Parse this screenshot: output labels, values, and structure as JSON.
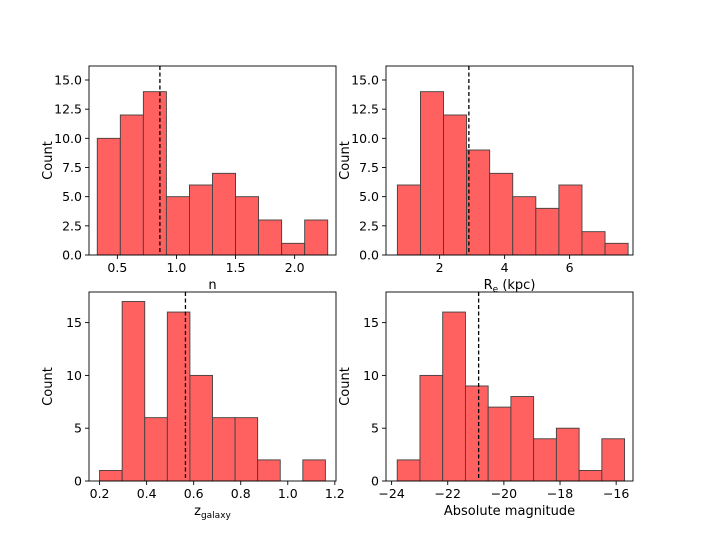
{
  "chart_data": [
    {
      "type": "bar",
      "panel": "top-left",
      "title": "",
      "xlabel": "n",
      "ylabel": "Count",
      "xlim": [
        0.26,
        2.35
      ],
      "ylim": [
        0,
        16.2
      ],
      "xticks": [
        0.5,
        1.0,
        1.5,
        2.0
      ],
      "xtick_labels": [
        "0.5",
        "1.0",
        "1.5",
        "2.0"
      ],
      "yticks": [
        0,
        2.5,
        5,
        7.5,
        10,
        12.5,
        15
      ],
      "ytick_labels": [
        "0.0",
        "2.5",
        "5.0",
        "7.5",
        "10.0",
        "12.5",
        "15.0"
      ],
      "bin_edges": [
        0.33,
        0.525,
        0.72,
        0.915,
        1.11,
        1.305,
        1.5,
        1.695,
        1.89,
        2.085,
        2.28
      ],
      "values": [
        10,
        12,
        14,
        5,
        6,
        7,
        5,
        3,
        1,
        3
      ],
      "median_line": 0.86,
      "bar_color": "#ff6161",
      "edge_color": "#404040"
    },
    {
      "type": "bar",
      "panel": "top-right",
      "title": "",
      "xlabel_main": "R",
      "xlabel_sub": "e",
      "xlabel_suffix": " (kpc)",
      "ylabel": "Count",
      "xlim": [
        0.35,
        7.95
      ],
      "ylim": [
        0,
        16.2
      ],
      "xticks": [
        2,
        4,
        6
      ],
      "xtick_labels": [
        "2",
        "4",
        "6"
      ],
      "yticks": [
        0,
        2.5,
        5,
        7.5,
        10,
        12.5,
        15
      ],
      "ytick_labels": [
        "0.0",
        "2.5",
        "5.0",
        "7.5",
        "10.0",
        "12.5",
        "15.0"
      ],
      "bin_edges": [
        0.7,
        1.41,
        2.12,
        2.83,
        3.54,
        4.25,
        4.96,
        5.67,
        6.38,
        7.09,
        7.8
      ],
      "values": [
        6,
        14,
        12,
        9,
        7,
        5,
        4,
        6,
        2,
        1
      ],
      "median_line": 2.9,
      "bar_color": "#ff6161",
      "edge_color": "#404040"
    },
    {
      "type": "bar",
      "panel": "bottom-left",
      "title": "",
      "xlabel_main": "z",
      "xlabel_sub": "galaxy",
      "xlabel_suffix": "",
      "ylabel": "Count",
      "xlim": [
        0.155,
        1.205
      ],
      "ylim": [
        0,
        17.9
      ],
      "xticks": [
        0.2,
        0.4,
        0.6,
        0.8,
        1.0,
        1.2
      ],
      "xtick_labels": [
        "0.2",
        "0.4",
        "0.6",
        "0.8",
        "1.0",
        "1.2"
      ],
      "yticks": [
        0,
        5,
        10,
        15
      ],
      "ytick_labels": [
        "0",
        "5",
        "10",
        "15"
      ],
      "bin_edges": [
        0.2,
        0.296,
        0.392,
        0.488,
        0.584,
        0.68,
        0.776,
        0.872,
        0.968,
        1.064,
        1.16
      ],
      "values": [
        1,
        17,
        6,
        16,
        10,
        6,
        6,
        2,
        0,
        2
      ],
      "median_line": 0.565,
      "bar_color": "#ff6161",
      "edge_color": "#404040"
    },
    {
      "type": "bar",
      "panel": "bottom-right",
      "title": "",
      "xlabel": "Absolute magnitude",
      "ylabel": "Count",
      "xlim": [
        -24.2,
        -15.4
      ],
      "ylim": [
        0,
        17.9
      ],
      "xticks": [
        -24,
        -22,
        -20,
        -18,
        -16
      ],
      "xtick_labels": [
        "−24",
        "−22",
        "−20",
        "−18",
        "−16"
      ],
      "yticks": [
        0,
        5,
        10,
        15
      ],
      "ytick_labels": [
        "0",
        "5",
        "10",
        "15"
      ],
      "bin_edges": [
        -23.8,
        -22.99,
        -22.18,
        -21.37,
        -20.56,
        -19.75,
        -18.94,
        -18.13,
        -17.32,
        -16.51,
        -15.7
      ],
      "values": [
        2,
        10,
        16,
        9,
        7,
        8,
        4,
        5,
        1,
        4
      ],
      "median_line": -20.9,
      "bar_color": "#ff6161",
      "edge_color": "#404040"
    }
  ]
}
